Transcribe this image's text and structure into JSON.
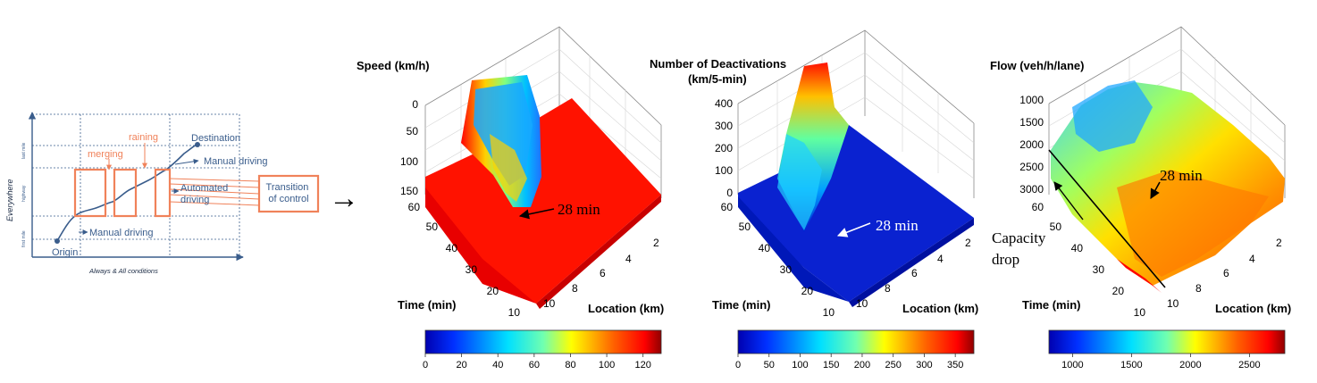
{
  "schematic": {
    "y_axis_label": "Everywhere",
    "x_axis_label": "Always & All conditions",
    "band_labels": [
      "last mile",
      "highway",
      "first mile"
    ],
    "origin_label": "Origin",
    "destination_label": "Destination",
    "event_labels": [
      "merging",
      "raining"
    ],
    "mode_labels": [
      "Manual driving",
      "Automated driving",
      "Manual driving"
    ],
    "transition_label": "Transition of control",
    "colors": {
      "axis": "#3a5d8c",
      "accent": "#f0825a"
    }
  },
  "arrow_glyph": "→",
  "chart_data": [
    {
      "type": "surface3d",
      "title": "Speed (km/h)",
      "xlabel": "Location (km)",
      "ylabel": "Time (min)",
      "zlabel": "Speed (km/h)",
      "x_ticks": [
        2,
        4,
        6,
        8,
        10
      ],
      "y_ticks": [
        10,
        20,
        30,
        40,
        50,
        60
      ],
      "z_ticks": [
        0,
        50,
        100,
        150
      ],
      "zlim": [
        0,
        150
      ],
      "annotation": "28 min",
      "colorbar": {
        "min": 0,
        "max": 130,
        "ticks": [
          0,
          20,
          40,
          60,
          80,
          100,
          120
        ]
      }
    },
    {
      "type": "surface3d",
      "title": "Number of Deactivations (km/5-min)",
      "xlabel": "Location (km)",
      "ylabel": "Time (min)",
      "zlabel": "Number of Deactivations",
      "x_ticks": [
        2,
        4,
        6,
        8,
        10
      ],
      "y_ticks": [
        10,
        20,
        30,
        40,
        50,
        60
      ],
      "z_ticks": [
        0,
        100,
        200,
        300,
        400
      ],
      "zlim": [
        0,
        400
      ],
      "annotation": "28 min",
      "colorbar": {
        "min": 0,
        "max": 380,
        "ticks": [
          0,
          50,
          100,
          150,
          200,
          250,
          300,
          350
        ]
      }
    },
    {
      "type": "surface3d",
      "title": "Flow (veh/h/lane)",
      "xlabel": "Location (km)",
      "ylabel": "Time (min)",
      "zlabel": "Flow (veh/h/lane)",
      "x_ticks": [
        2,
        4,
        6,
        8,
        10
      ],
      "y_ticks": [
        10,
        20,
        30,
        40,
        50,
        60
      ],
      "z_ticks": [
        1000,
        1500,
        2000,
        2500,
        3000
      ],
      "zlim": [
        1000,
        3000
      ],
      "annotation": "28 min",
      "annotation2": "Capacity drop",
      "colorbar": {
        "min": 800,
        "max": 2800,
        "ticks": [
          1000,
          1500,
          2000,
          2500
        ]
      }
    }
  ]
}
